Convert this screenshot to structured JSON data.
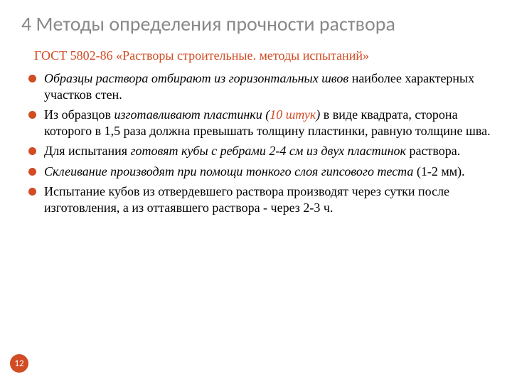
{
  "title": "4 Методы определения прочности раствора",
  "subtitle": "ГОСТ 5802-86 «Растворы строительные. методы испытаний»",
  "bullets": [
    {
      "parts": [
        {
          "text": "Образцы раствора отбирают из горизонтальных швов",
          "italic": true
        },
        {
          "text": " наиболее характерных участков стен."
        }
      ]
    },
    {
      "parts": [
        {
          "text": "Из образцов "
        },
        {
          "text": "изготавливают пластинки (",
          "italic": true
        },
        {
          "text": "10 штук",
          "italic": true,
          "accent": true
        },
        {
          "text": ")",
          "italic": true
        },
        {
          "text": " в виде квадрата, сторона которого в 1,5 раза должна превышать толщину пластинки, равную толщине шва."
        }
      ]
    },
    {
      "parts": [
        {
          "text": "Для испытания "
        },
        {
          "text": "готовят кубы с ребрами 2-4 см из двух пластинок",
          "italic": true
        },
        {
          "text": " раствора."
        }
      ]
    },
    {
      "parts": [
        {
          "text": "Склеивание производят при помощи тонкого слоя гипсового теста",
          "italic": true
        },
        {
          "text": " (1-2 мм)."
        }
      ]
    },
    {
      "parts": [
        {
          "text": "Испытание кубов из отвердевшего раствора производят через сутки после изготовления, а из оттаявшего раствора  - через 2-3 ч."
        }
      ]
    }
  ],
  "pageNumber": "12",
  "colors": {
    "titleColor": "#898989",
    "accentColor": "#d14b23",
    "textColor": "#000000",
    "background": "#ffffff"
  },
  "fontSizes": {
    "title": 28,
    "subtitle": 18,
    "body": 18,
    "badge": 13
  }
}
